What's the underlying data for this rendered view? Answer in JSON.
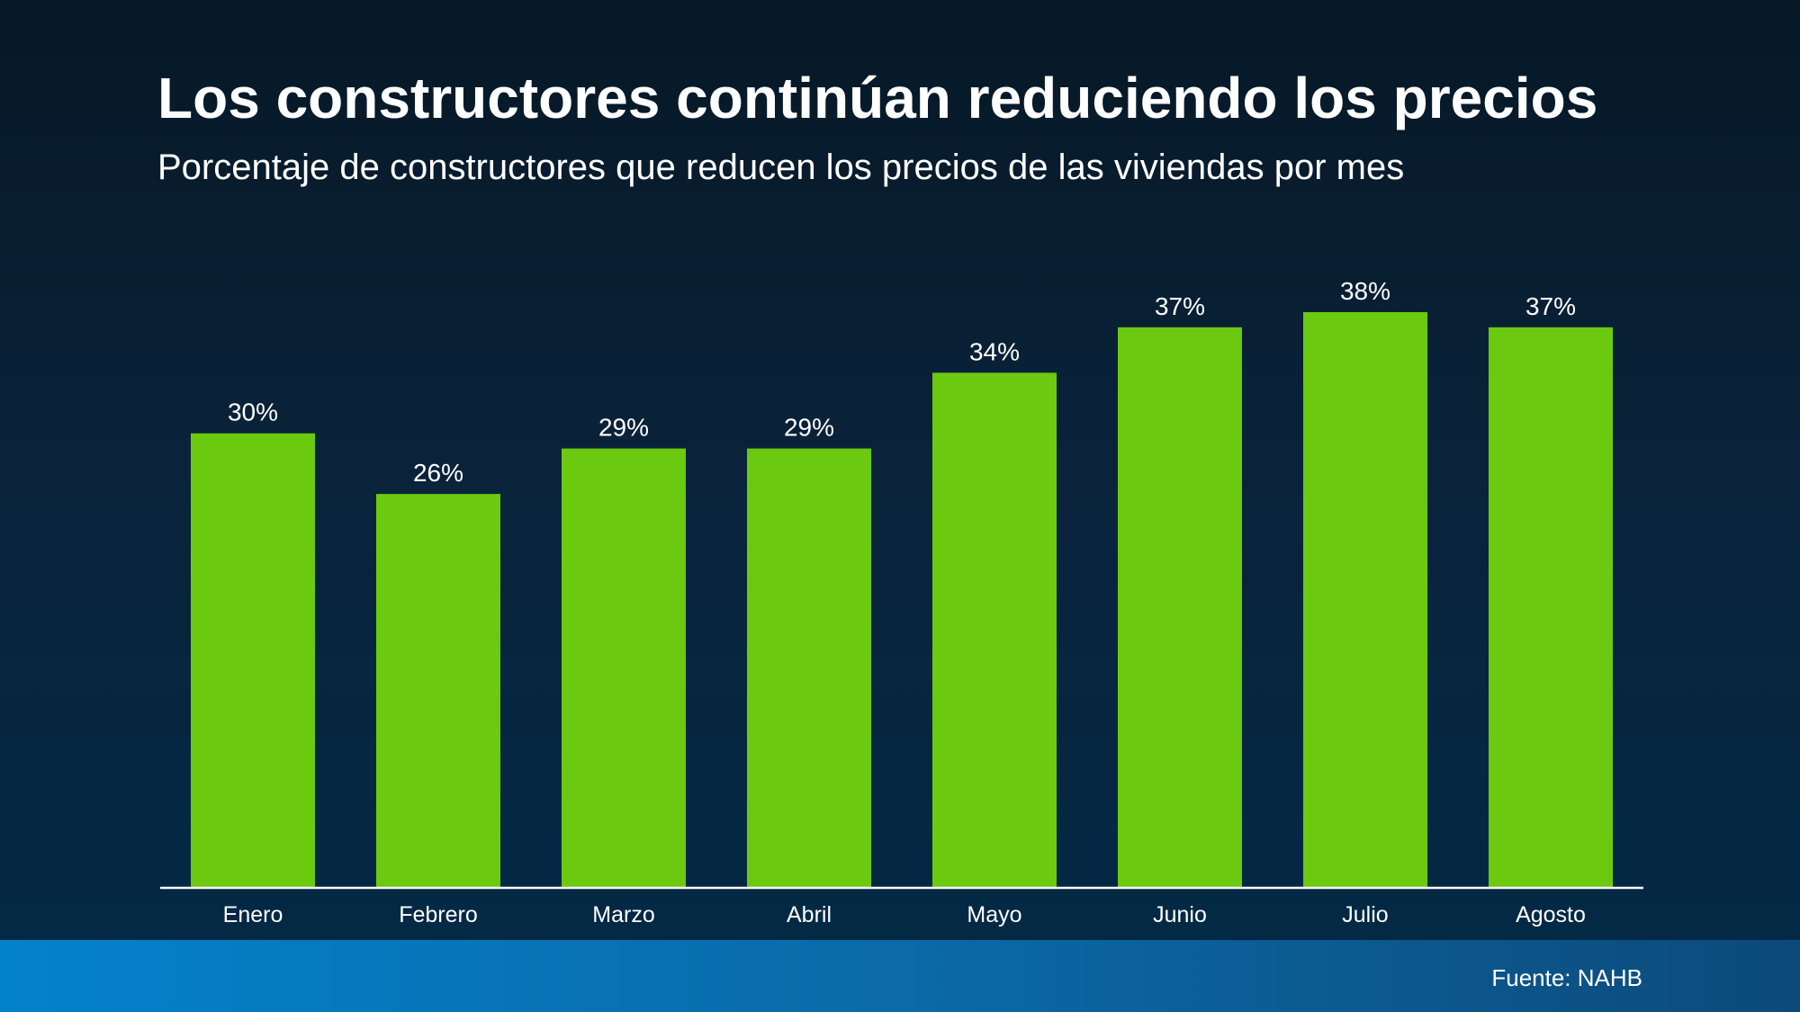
{
  "header": {
    "title": "Los constructores continúan reduciendo los precios",
    "subtitle": "Porcentaje de constructores que reducen los precios de las viviendas por mes"
  },
  "footer": {
    "source": "Fuente: NAHB"
  },
  "colors": {
    "bar": "#6bc90f",
    "axis": "#ffffff",
    "label": "#ffffff"
  },
  "chart_data": {
    "type": "bar",
    "title": "Los constructores continúan reduciendo los precios",
    "subtitle": "Porcentaje de constructores que reducen los precios de las viviendas por mes",
    "categories": [
      "Enero",
      "Febrero",
      "Marzo",
      "Abril",
      "Mayo",
      "Junio",
      "Julio",
      "Agosto"
    ],
    "values": [
      30,
      26,
      29,
      29,
      34,
      37,
      38,
      37
    ],
    "data_labels": [
      "30%",
      "26%",
      "29%",
      "29%",
      "34%",
      "37%",
      "38%",
      "37%"
    ],
    "xlabel": "",
    "ylabel": "",
    "ylim": [
      0,
      38
    ],
    "grid": false,
    "legend": "none"
  }
}
